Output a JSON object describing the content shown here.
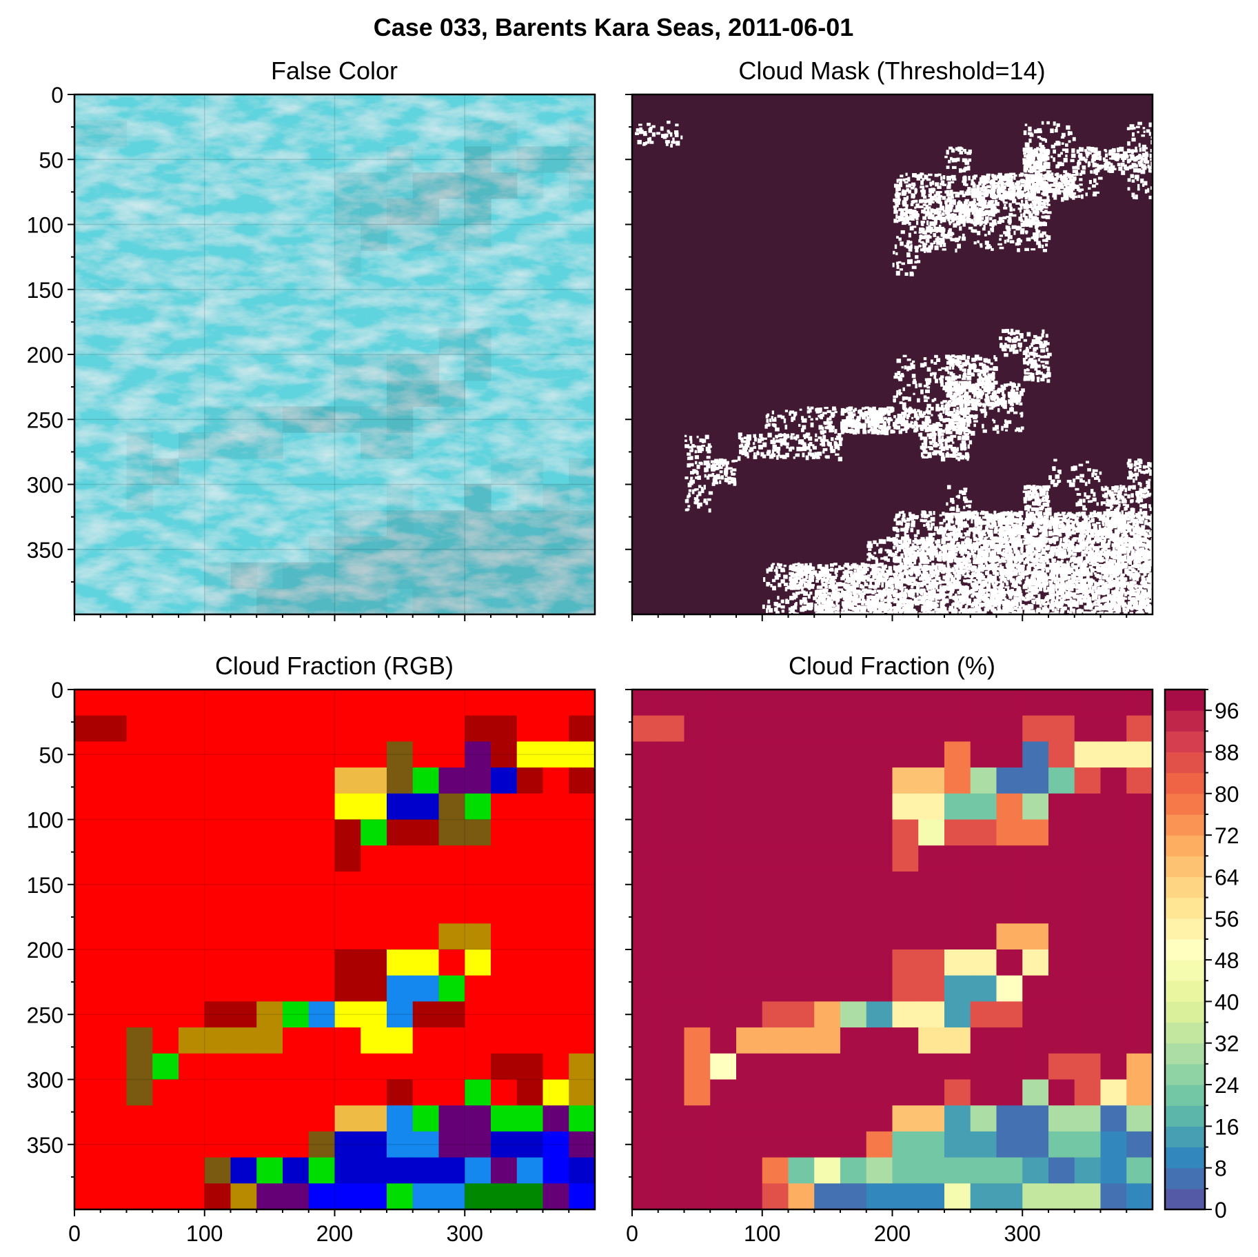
{
  "figure": {
    "suptitle": "Case 033, Barents Kara Seas, 2011-06-01"
  },
  "colors": {
    "mask_background": "#421933",
    "mask_foreground": "#ffffff",
    "frame": "#000000"
  },
  "chart_data": [
    {
      "type": "heatmap",
      "id": "false-color",
      "title": "False Color",
      "description_of_content": "satellite false-color composite (cyan sea ice, white cloud, dark open water)",
      "xlim": [
        0,
        400
      ],
      "ylim": [
        400,
        0
      ],
      "xticks": [
        0,
        100,
        200,
        300
      ],
      "yticks": [
        0,
        50,
        100,
        150,
        200,
        250,
        300,
        350
      ],
      "xtick_labels_shown": false,
      "grid": true
    },
    {
      "type": "heatmap",
      "id": "cloud-mask",
      "title": "Cloud Mask (Threshold=14)",
      "xlim": [
        0,
        400
      ],
      "ylim": [
        400,
        0
      ],
      "xtick_labels_shown": false,
      "ytick_labels_shown": false,
      "values_meaning": "white = cloud-free pixels, dark = masked"
    },
    {
      "type": "heatmap",
      "id": "cloud-fraction-rgb",
      "title": "Cloud Fraction (RGB)",
      "xlim": [
        0,
        400
      ],
      "ylim": [
        400,
        0
      ],
      "xticks": [
        0,
        100,
        200,
        300
      ],
      "yticks": [
        0,
        50,
        100,
        150,
        200,
        250,
        300,
        350
      ],
      "block_size": 20,
      "grid": true
    },
    {
      "type": "heatmap",
      "id": "cloud-fraction-pct",
      "title": "Cloud Fraction (%)",
      "xlim": [
        0,
        400
      ],
      "ylim": [
        400,
        0
      ],
      "xticks": [
        0,
        100,
        200,
        300
      ],
      "block_size": 20,
      "colorbar": {
        "min": 0,
        "max": 100,
        "ticks": [
          0,
          8,
          16,
          24,
          32,
          40,
          48,
          56,
          64,
          72,
          80,
          88,
          96
        ],
        "levels": 25
      }
    }
  ],
  "cloud_fraction_grid": [
    [
      100,
      100,
      100,
      100,
      100,
      100,
      100,
      100,
      100,
      100,
      100,
      100,
      100,
      100,
      100,
      100,
      100,
      100,
      100,
      100
    ],
    [
      86,
      86,
      100,
      100,
      100,
      100,
      100,
      100,
      100,
      100,
      100,
      100,
      100,
      100,
      100,
      86,
      86,
      100,
      100,
      86
    ],
    [
      100,
      100,
      100,
      100,
      100,
      100,
      100,
      100,
      100,
      100,
      100,
      100,
      78,
      100,
      100,
      6,
      86,
      54,
      54,
      54
    ],
    [
      100,
      100,
      100,
      100,
      100,
      100,
      100,
      100,
      100,
      100,
      66,
      66,
      78,
      30,
      6,
      6,
      22,
      86,
      100,
      86
    ],
    [
      100,
      100,
      100,
      100,
      100,
      100,
      100,
      100,
      100,
      100,
      54,
      54,
      22,
      22,
      78,
      30,
      100,
      100,
      100,
      100
    ],
    [
      100,
      100,
      100,
      100,
      100,
      100,
      100,
      100,
      100,
      100,
      86,
      46,
      86,
      86,
      78,
      78,
      100,
      100,
      100,
      100
    ],
    [
      100,
      100,
      100,
      100,
      100,
      100,
      100,
      100,
      100,
      100,
      86,
      100,
      100,
      100,
      100,
      100,
      100,
      100,
      100,
      100
    ],
    [
      100,
      100,
      100,
      100,
      100,
      100,
      100,
      100,
      100,
      100,
      100,
      100,
      100,
      100,
      100,
      100,
      100,
      100,
      100,
      100
    ],
    [
      100,
      100,
      100,
      100,
      100,
      100,
      100,
      100,
      100,
      100,
      100,
      100,
      100,
      100,
      100,
      100,
      100,
      100,
      100,
      100
    ],
    [
      100,
      100,
      100,
      100,
      100,
      100,
      100,
      100,
      100,
      100,
      100,
      100,
      100,
      100,
      70,
      70,
      100,
      100,
      100,
      100
    ],
    [
      100,
      100,
      100,
      100,
      100,
      100,
      100,
      100,
      100,
      100,
      86,
      86,
      54,
      54,
      100,
      54,
      100,
      100,
      100,
      100
    ],
    [
      100,
      100,
      100,
      100,
      100,
      100,
      100,
      100,
      100,
      100,
      86,
      86,
      14,
      14,
      50,
      100,
      100,
      100,
      100,
      100
    ],
    [
      100,
      100,
      100,
      100,
      100,
      86,
      86,
      70,
      30,
      14,
      54,
      54,
      14,
      86,
      86,
      100,
      100,
      100,
      100,
      100
    ],
    [
      100,
      100,
      78,
      100,
      70,
      70,
      70,
      70,
      100,
      100,
      100,
      58,
      58,
      100,
      100,
      100,
      100,
      100,
      100,
      100
    ],
    [
      100,
      100,
      78,
      50,
      100,
      100,
      100,
      100,
      100,
      100,
      100,
      100,
      100,
      100,
      100,
      100,
      86,
      86,
      100,
      70
    ],
    [
      100,
      100,
      78,
      100,
      100,
      100,
      100,
      100,
      100,
      100,
      100,
      100,
      86,
      100,
      100,
      30,
      100,
      86,
      54,
      70
    ],
    [
      100,
      100,
      100,
      100,
      100,
      100,
      100,
      100,
      100,
      100,
      66,
      66,
      14,
      30,
      6,
      6,
      30,
      30,
      6,
      30
    ],
    [
      100,
      100,
      100,
      100,
      100,
      100,
      100,
      100,
      100,
      78,
      22,
      22,
      14,
      14,
      6,
      6,
      22,
      22,
      10,
      6
    ],
    [
      100,
      100,
      100,
      100,
      100,
      78,
      22,
      46,
      22,
      30,
      22,
      22,
      22,
      22,
      22,
      14,
      6,
      14,
      10,
      22
    ],
    [
      100,
      100,
      100,
      100,
      100,
      86,
      70,
      6,
      6,
      10,
      10,
      10,
      46,
      14,
      14,
      34,
      34,
      34,
      6,
      10
    ]
  ]
}
